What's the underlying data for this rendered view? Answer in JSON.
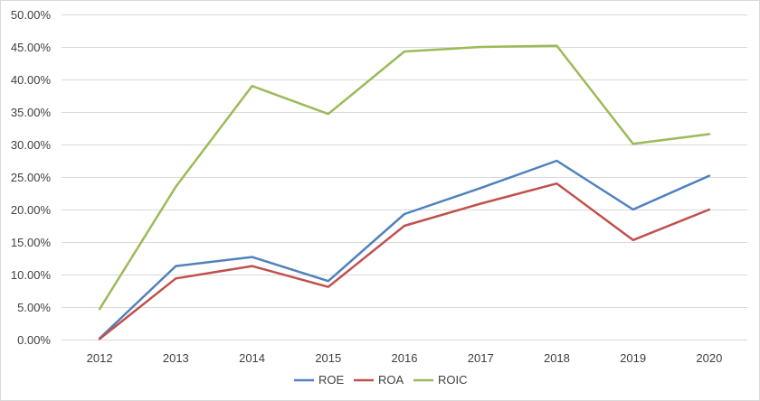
{
  "chart_data": {
    "type": "line",
    "title": "",
    "xlabel": "",
    "ylabel": "",
    "categories": [
      "2012",
      "2013",
      "2014",
      "2015",
      "2016",
      "2017",
      "2018",
      "2019",
      "2020"
    ],
    "ylim": [
      0,
      0.5
    ],
    "yticks": [
      0,
      0.05,
      0.1,
      0.15,
      0.2,
      0.25,
      0.3,
      0.35,
      0.4,
      0.45,
      0.5
    ],
    "ytick_labels": [
      "0.00%",
      "5.00%",
      "10.00%",
      "15.00%",
      "20.00%",
      "25.00%",
      "30.00%",
      "35.00%",
      "40.00%",
      "45.00%",
      "50.00%"
    ],
    "grid": "horizontal",
    "legend_position": "bottom",
    "series": [
      {
        "name": "ROE",
        "color": "#4f81bd",
        "values": [
          0.002,
          0.113,
          0.127,
          0.09,
          0.193,
          0.233,
          0.275,
          0.2,
          0.252
        ]
      },
      {
        "name": "ROA",
        "color": "#c0504d",
        "values": [
          0.001,
          0.094,
          0.113,
          0.081,
          0.175,
          0.209,
          0.24,
          0.153,
          0.2
        ]
      },
      {
        "name": "ROIC",
        "color": "#9bbb59",
        "values": [
          0.047,
          0.235,
          0.39,
          0.347,
          0.443,
          0.45,
          0.452,
          0.301,
          0.316
        ]
      }
    ]
  }
}
